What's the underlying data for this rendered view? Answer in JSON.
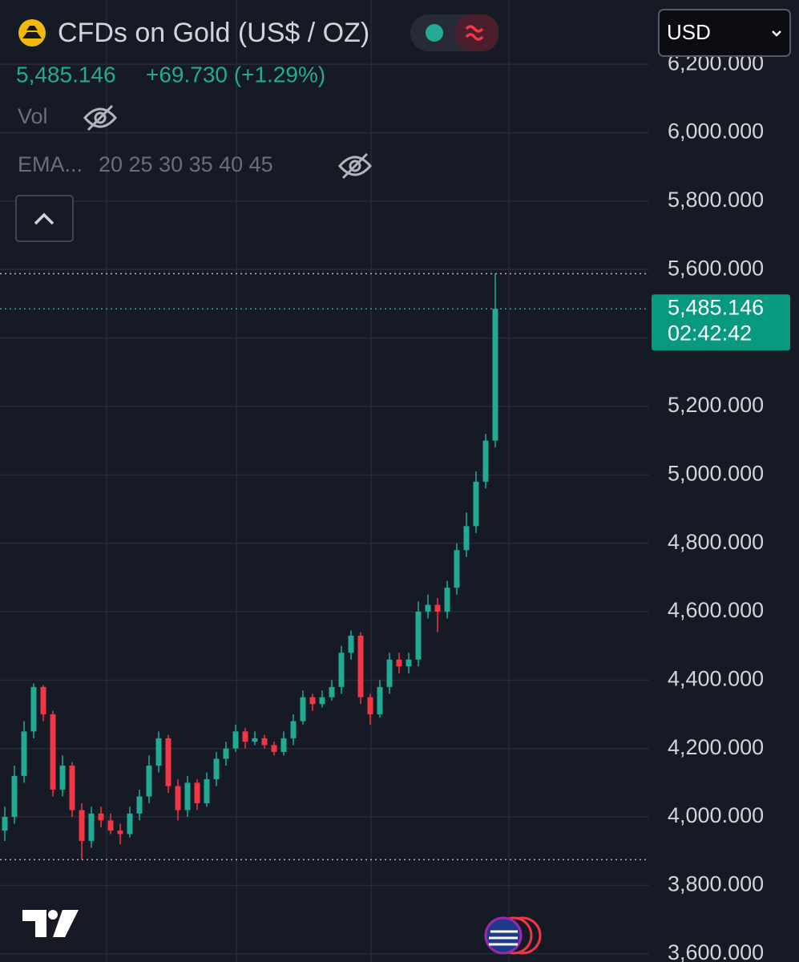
{
  "header": {
    "symbol": "CFDs on Gold (US$ / OZ)",
    "price": "5,485.146",
    "change": "+69.730 (+1.29%)",
    "vol": "Vol",
    "ema": "EMA...",
    "ema_params": "20 25 30 35 40 45",
    "currency": "USD"
  },
  "chart_data": {
    "type": "candlestick",
    "up_color": "#22ab94",
    "down_color": "#f23645",
    "grid": true,
    "ylim": [
      3576,
      6388
    ],
    "yticks": [
      {
        "value": 3600,
        "label": "3,600.000"
      },
      {
        "value": 3800,
        "label": "3,800.000"
      },
      {
        "value": 4000,
        "label": "4,000.000"
      },
      {
        "value": 4200,
        "label": "4,200.000"
      },
      {
        "value": 4400,
        "label": "4,400.000"
      },
      {
        "value": 4600,
        "label": "4,600.000"
      },
      {
        "value": 4800,
        "label": "4,800.000"
      },
      {
        "value": 5000,
        "label": "5,000.000"
      },
      {
        "value": 5200,
        "label": "5,200.000"
      },
      {
        "value": 5400,
        "label": "5,400.000"
      },
      {
        "value": 5600,
        "label": "5,600.000"
      },
      {
        "value": 5800,
        "label": "5,800.000"
      },
      {
        "value": 6000,
        "label": "6,000.000"
      },
      {
        "value": 6200,
        "label": "6,200.000"
      }
    ],
    "last_price": 5485.146,
    "last_price_label": "5,485.146",
    "countdown": "02:42:42",
    "high_line": 5588,
    "low_line": 3875,
    "open": [
      3960,
      4000,
      4120,
      4250,
      4380,
      4300,
      4080,
      4150,
      4020,
      3930,
      4010,
      3990,
      3960,
      3950,
      4010,
      4060,
      4150,
      4230,
      4090,
      4020,
      4100,
      4040,
      4110,
      4170,
      4200,
      4250,
      4220,
      4230,
      4210,
      4190,
      4230,
      4280,
      4350,
      4330,
      4350,
      4380,
      4480,
      4530,
      4350,
      4300,
      4380,
      4460,
      4440,
      4460,
      4600,
      4620,
      4600,
      4670,
      4780,
      4850,
      4980,
      5100
    ],
    "high": [
      4030,
      4150,
      4280,
      4390,
      4385,
      4310,
      4180,
      4160,
      4040,
      4030,
      4030,
      4010,
      3980,
      4030,
      4080,
      4180,
      4250,
      4240,
      4110,
      4120,
      4110,
      4130,
      4190,
      4220,
      4270,
      4260,
      4250,
      4240,
      4220,
      4250,
      4300,
      4370,
      4360,
      4370,
      4400,
      4500,
      4545,
      4540,
      4360,
      4400,
      4480,
      4480,
      4480,
      4630,
      4650,
      4640,
      4690,
      4800,
      4890,
      5010,
      5120,
      5588
    ],
    "low": [
      3930,
      3980,
      4100,
      4230,
      4280,
      4060,
      4060,
      4000,
      3875,
      3910,
      3970,
      3950,
      3920,
      3940,
      3990,
      4040,
      4130,
      4070,
      3990,
      4000,
      4020,
      4030,
      4090,
      4150,
      4190,
      4200,
      4210,
      4200,
      4180,
      4180,
      4210,
      4270,
      4310,
      4320,
      4340,
      4360,
      4460,
      4330,
      4270,
      4290,
      4360,
      4420,
      4420,
      4440,
      4580,
      4540,
      4580,
      4650,
      4760,
      4830,
      4960,
      5080
    ],
    "close": [
      4000,
      4120,
      4250,
      4380,
      4300,
      4080,
      4150,
      4020,
      3930,
      4010,
      3990,
      3960,
      3950,
      4010,
      4060,
      4150,
      4230,
      4090,
      4020,
      4100,
      4040,
      4110,
      4170,
      4200,
      4250,
      4220,
      4230,
      4210,
      4190,
      4230,
      4280,
      4350,
      4330,
      4350,
      4380,
      4480,
      4530,
      4350,
      4300,
      4380,
      4460,
      4440,
      4460,
      4600,
      4620,
      4600,
      4670,
      4780,
      4850,
      4980,
      5100,
      5485.146
    ]
  }
}
